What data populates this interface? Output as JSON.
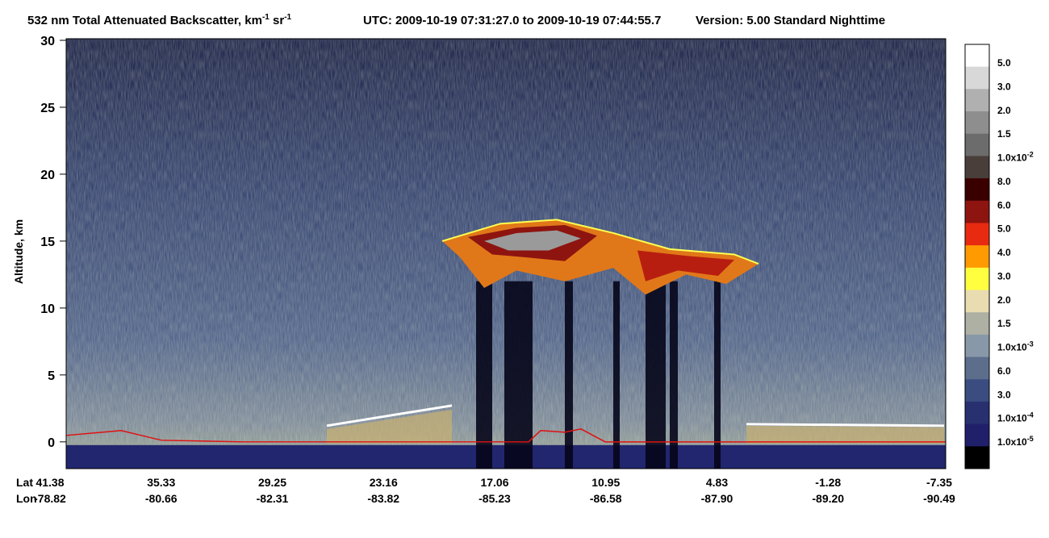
{
  "chart_data": {
    "type": "curtain",
    "title": [
      {
        "text": "532 nm Total Attenuated Backscatter, km"
      },
      {
        "text": "-1",
        "sup": true
      },
      {
        "text": " sr"
      },
      {
        "text": "-1",
        "sup": true
      }
    ],
    "utc": "UTC:  2009-10-19 07:31:27.0  to  2009-10-19 07:44:55.7",
    "version": "Version: 5.00  Standard  Nighttime",
    "y_label": "Altitude, km",
    "ylim": [
      -2,
      30
    ],
    "yticks": [
      0,
      5,
      10,
      15,
      20,
      25,
      30
    ],
    "lat_label": "Lat",
    "lon_label": "Lon",
    "lat": [
      "41.38",
      "35.33",
      "29.25",
      "23.16",
      "17.06",
      "10.95",
      "4.83",
      "-1.28",
      "-7.35"
    ],
    "lon": [
      "-78.82",
      "-80.66",
      "-82.31",
      "-83.82",
      "-85.23",
      "-86.58",
      "-87.90",
      "-89.20",
      "-90.49"
    ],
    "colorbar": {
      "colors": [
        "#ffffff",
        "#d8d8d8",
        "#b0b0b0",
        "#8e8e8e",
        "#6c6c6c",
        "#4a3e3a",
        "#3a0000",
        "#8e1410",
        "#e82a10",
        "#ff9a00",
        "#ffff40",
        "#e8dcb0",
        "#aeb0a4",
        "#8898a8",
        "#5c6e8c",
        "#3a4c80",
        "#283070",
        "#20206a",
        "#000000"
      ],
      "labels": [
        {
          "text": "5.0"
        },
        {
          "text": "3.0"
        },
        {
          "text": "2.0"
        },
        {
          "text": "1.5"
        },
        {
          "text": "1.0x10",
          "exp": "-2"
        },
        {
          "text": "8.0"
        },
        {
          "text": "6.0"
        },
        {
          "text": "5.0"
        },
        {
          "text": "4.0"
        },
        {
          "text": "3.0"
        },
        {
          "text": "2.0"
        },
        {
          "text": "1.5"
        },
        {
          "text": "1.0x10",
          "exp": "-3"
        },
        {
          "text": "6.0"
        },
        {
          "text": "3.0"
        },
        {
          "text": "1.0x10",
          "exp": "-4"
        },
        {
          "text": "1.0x10",
          "exp": "-5"
        }
      ]
    }
  }
}
